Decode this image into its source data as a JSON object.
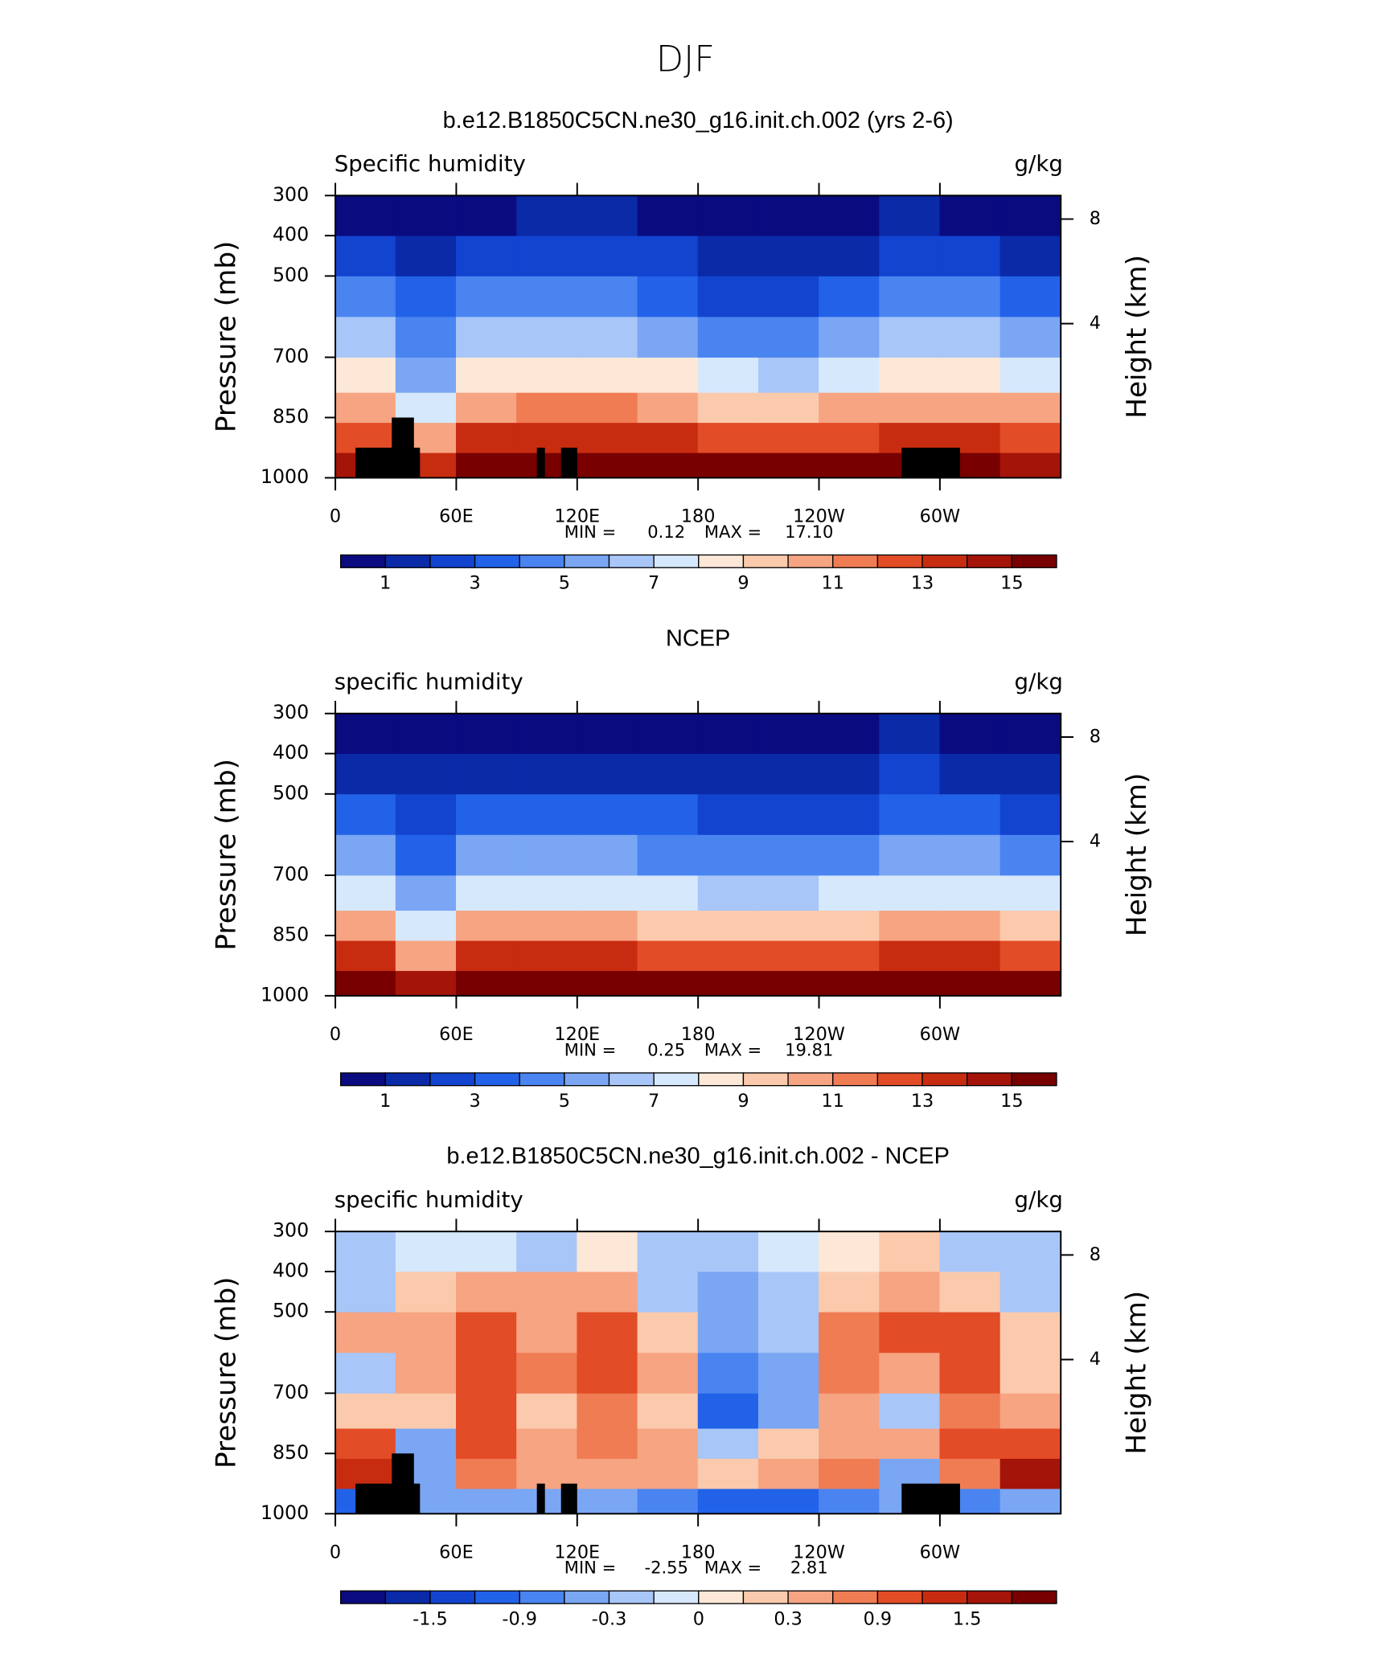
{
  "title": "DJF",
  "chart_data": [
    {
      "type": "contour",
      "title": "b.e12.B1850C5CN.ne30_g16.init.ch.002 (yrs 2-6)",
      "left_label": "Specific humidity",
      "right_label": "g/kg",
      "ylabel": "Pressure (mb)",
      "y2label": "Height (km)",
      "x": [
        15,
        45,
        75,
        105,
        135,
        165,
        195,
        225,
        255,
        285,
        315,
        345
      ],
      "y": [
        975,
        900,
        825,
        750,
        650,
        550,
        450,
        350
      ],
      "z": [
        [
          14,
          13,
          15.5,
          16,
          16,
          15.5,
          15,
          15,
          15,
          15,
          15,
          14
        ],
        [
          12,
          10,
          13,
          13.5,
          13.5,
          13,
          12.5,
          12,
          12.5,
          13,
          13,
          12
        ],
        [
          10,
          7,
          10.5,
          11,
          11,
          10.5,
          9.5,
          9.5,
          10,
          10.5,
          10.5,
          10
        ],
        [
          8,
          5,
          8,
          8.5,
          8.5,
          8,
          7,
          6.5,
          7.5,
          8.5,
          8,
          7.5
        ],
        [
          6,
          4,
          6,
          6.5,
          6.5,
          5.5,
          4.5,
          4.5,
          5,
          6.5,
          6,
          5.5
        ],
        [
          4,
          3,
          4,
          4.5,
          4.5,
          3.5,
          2.5,
          2.5,
          3.5,
          4.5,
          4,
          3.5
        ],
        [
          2,
          1.8,
          2.2,
          2.6,
          2.6,
          2,
          1.4,
          1.3,
          1.8,
          2.6,
          2.2,
          1.8
        ],
        [
          0.8,
          0.7,
          0.9,
          1.2,
          1.2,
          0.8,
          0.5,
          0.5,
          0.7,
          1.1,
          0.9,
          0.7
        ]
      ],
      "masks": [
        {
          "x": [
            10,
            42
          ],
          "top": 925
        },
        {
          "x": [
            28,
            39
          ],
          "top": 850
        },
        {
          "x": [
            100,
            104
          ],
          "top": 925
        },
        {
          "x": [
            112,
            120
          ],
          "top": 925
        },
        {
          "x": [
            281,
            310
          ],
          "top": 925
        }
      ],
      "xlim": [
        0,
        360
      ],
      "xticks": [
        0,
        {
          "value": 60,
          "label": "60E"
        },
        {
          "value": 120,
          "label": "120E"
        },
        180,
        {
          "value": 240,
          "label": "120W"
        },
        {
          "value": 300,
          "label": "60W"
        }
      ],
      "ylim": [
        1000,
        300
      ],
      "yticks": [
        1000,
        850,
        700,
        500,
        400,
        300
      ],
      "y2lim": [
        -1.9,
        8.9
      ],
      "y2ticks": [
        4,
        8
      ],
      "stats": {
        "min_text": "MIN =",
        "min": 0.12,
        "max_text": "MAX =",
        "max": {
          "value": 17.1,
          "label": "17.10"
        }
      },
      "levels": [
        1,
        2,
        3,
        4,
        5,
        6,
        7,
        8,
        9,
        10,
        11,
        12,
        13,
        14,
        15
      ],
      "colors": [
        "#0b0b80",
        "#0a2aa8",
        "#1244d0",
        "#2262e8",
        "#4a84f0",
        "#7aa6f4",
        "#a8c6f8",
        "#d6e8fc",
        "#fde8d8",
        "#fbcaac",
        "#f6a482",
        "#f07c54",
        "#e24c26",
        "#c82c10",
        "#a41408",
        "#780000"
      ],
      "colorbar_ticks": [
        1,
        3,
        5,
        7,
        9,
        11,
        13,
        15
      ]
    },
    {
      "type": "contour",
      "title": "NCEP",
      "left_label": "specific humidity",
      "right_label": "g/kg",
      "ylabel": "Pressure (mb)",
      "y2label": "Height (km)",
      "x": [
        15,
        45,
        75,
        105,
        135,
        165,
        195,
        225,
        255,
        285,
        315,
        345
      ],
      "y": [
        975,
        900,
        825,
        750,
        650,
        550,
        450,
        350
      ],
      "z": [
        [
          16,
          14,
          17,
          17,
          17,
          16.5,
          16.5,
          16.5,
          17,
          16,
          16.5,
          16
        ],
        [
          13,
          10,
          13,
          13,
          13,
          12.5,
          12.5,
          12.5,
          12.5,
          13,
          13,
          12.5
        ],
        [
          10,
          7,
          10,
          10,
          10,
          9.5,
          9,
          9,
          9.5,
          10,
          10,
          9.5
        ],
        [
          7.5,
          5,
          7.5,
          7.5,
          7.5,
          7,
          6.5,
          6.5,
          7,
          7.5,
          7.5,
          7
        ],
        [
          5.5,
          3.5,
          5,
          5,
          5,
          4.5,
          4.5,
          4,
          4.5,
          5.5,
          5,
          4.5
        ],
        [
          3.5,
          2.5,
          3,
          3,
          3,
          3,
          2.5,
          2,
          2.5,
          3.5,
          3,
          2.5
        ],
        [
          1.8,
          1.5,
          1.8,
          1.8,
          1.8,
          1.8,
          1.5,
          1.1,
          1.4,
          2,
          1.6,
          1.4
        ],
        [
          0.8,
          0.7,
          0.9,
          0.9,
          0.9,
          0.9,
          0.7,
          0.5,
          0.6,
          1,
          0.7,
          0.6
        ]
      ],
      "masks": [],
      "xlim": [
        0,
        360
      ],
      "xticks": [
        0,
        {
          "value": 60,
          "label": "60E"
        },
        {
          "value": 120,
          "label": "120E"
        },
        180,
        {
          "value": 240,
          "label": "120W"
        },
        {
          "value": 300,
          "label": "60W"
        }
      ],
      "ylim": [
        1000,
        300
      ],
      "yticks": [
        1000,
        850,
        700,
        500,
        400,
        300
      ],
      "y2lim": [
        -1.9,
        8.9
      ],
      "y2ticks": [
        4,
        8
      ],
      "stats": {
        "min_text": "MIN =",
        "min": 0.25,
        "max_text": "MAX =",
        "max": 19.81
      },
      "levels": [
        1,
        2,
        3,
        4,
        5,
        6,
        7,
        8,
        9,
        10,
        11,
        12,
        13,
        14,
        15
      ],
      "colors": [
        "#0b0b80",
        "#0a2aa8",
        "#1244d0",
        "#2262e8",
        "#4a84f0",
        "#7aa6f4",
        "#a8c6f8",
        "#d6e8fc",
        "#fde8d8",
        "#fbcaac",
        "#f6a482",
        "#f07c54",
        "#e24c26",
        "#c82c10",
        "#a41408",
        "#780000"
      ],
      "colorbar_ticks": [
        1,
        3,
        5,
        7,
        9,
        11,
        13,
        15
      ]
    },
    {
      "type": "contour",
      "title": "b.e12.B1850C5CN.ne30_g16.init.ch.002 - NCEP",
      "left_label": "specific humidity",
      "right_label": "g/kg",
      "ylabel": "Pressure (mb)",
      "y2label": "Height (km)",
      "x": [
        15,
        45,
        75,
        105,
        135,
        165,
        195,
        225,
        255,
        285,
        315,
        345
      ],
      "y": [
        975,
        900,
        825,
        750,
        650,
        550,
        450,
        350
      ],
      "z": [
        [
          -1,
          -0.5,
          -0.6,
          -0.6,
          -0.6,
          -0.8,
          -1,
          -1,
          -0.8,
          -0.5,
          -0.7,
          -0.5
        ],
        [
          1.2,
          -0.5,
          0.8,
          0.5,
          0.5,
          0.4,
          0.1,
          0.3,
          0.8,
          -0.5,
          0.8,
          1.5
        ],
        [
          1,
          -0.6,
          1,
          0.5,
          0.8,
          0.5,
          -0.2,
          0.1,
          0.5,
          0.5,
          0.9,
          0.9
        ],
        [
          0.2,
          0.2,
          0.9,
          0.2,
          0.8,
          0.2,
          -1,
          -0.6,
          0.5,
          -0.3,
          0.7,
          0.4
        ],
        [
          -0.2,
          0.5,
          1.1,
          0.6,
          1.1,
          0.3,
          -0.8,
          -0.4,
          0.6,
          0.3,
          1,
          0.2
        ],
        [
          0.4,
          0.3,
          1,
          0.5,
          1.1,
          0.1,
          -0.6,
          -0.2,
          0.6,
          1,
          0.9,
          0.1
        ],
        [
          -0.2,
          0.1,
          0.4,
          0.3,
          0.4,
          -0.2,
          -0.5,
          -0.2,
          0.2,
          0.4,
          0.2,
          -0.2
        ],
        [
          -0.2,
          -0.1,
          -0.1,
          -0.2,
          0,
          -0.2,
          -0.2,
          -0.1,
          0,
          0.1,
          -0.3,
          -0.2
        ]
      ],
      "masks": [
        {
          "x": [
            10,
            42
          ],
          "top": 925
        },
        {
          "x": [
            28,
            39
          ],
          "top": 850
        },
        {
          "x": [
            100,
            104
          ],
          "top": 925
        },
        {
          "x": [
            112,
            120
          ],
          "top": 925
        },
        {
          "x": [
            281,
            310
          ],
          "top": 925
        }
      ],
      "xlim": [
        0,
        360
      ],
      "xticks": [
        0,
        {
          "value": 60,
          "label": "60E"
        },
        {
          "value": 120,
          "label": "120E"
        },
        180,
        {
          "value": 240,
          "label": "120W"
        },
        {
          "value": 300,
          "label": "60W"
        }
      ],
      "ylim": [
        1000,
        300
      ],
      "yticks": [
        1000,
        850,
        700,
        500,
        400,
        300
      ],
      "y2lim": [
        -1.9,
        8.9
      ],
      "y2ticks": [
        4,
        8
      ],
      "stats": {
        "min_text": "MIN =",
        "min": -2.55,
        "max_text": "MAX =",
        "max": 2.81
      },
      "levels": [
        -1.8,
        -1.5,
        -1.2,
        -0.9,
        -0.6,
        -0.3,
        -0.1,
        0,
        0.1,
        0.3,
        0.6,
        0.9,
        1.2,
        1.5,
        1.8
      ],
      "colors": [
        "#0b0b80",
        "#0a2aa8",
        "#1244d0",
        "#2262e8",
        "#4a84f0",
        "#7aa6f4",
        "#a8c6f8",
        "#d6e8fc",
        "#fde8d8",
        "#fbcaac",
        "#f6a482",
        "#f07c54",
        "#e24c26",
        "#c82c10",
        "#a41408",
        "#780000"
      ],
      "colorbar_ticks": [
        -1.5,
        -0.9,
        -0.3,
        0,
        0.3,
        0.9,
        1.5
      ]
    }
  ]
}
